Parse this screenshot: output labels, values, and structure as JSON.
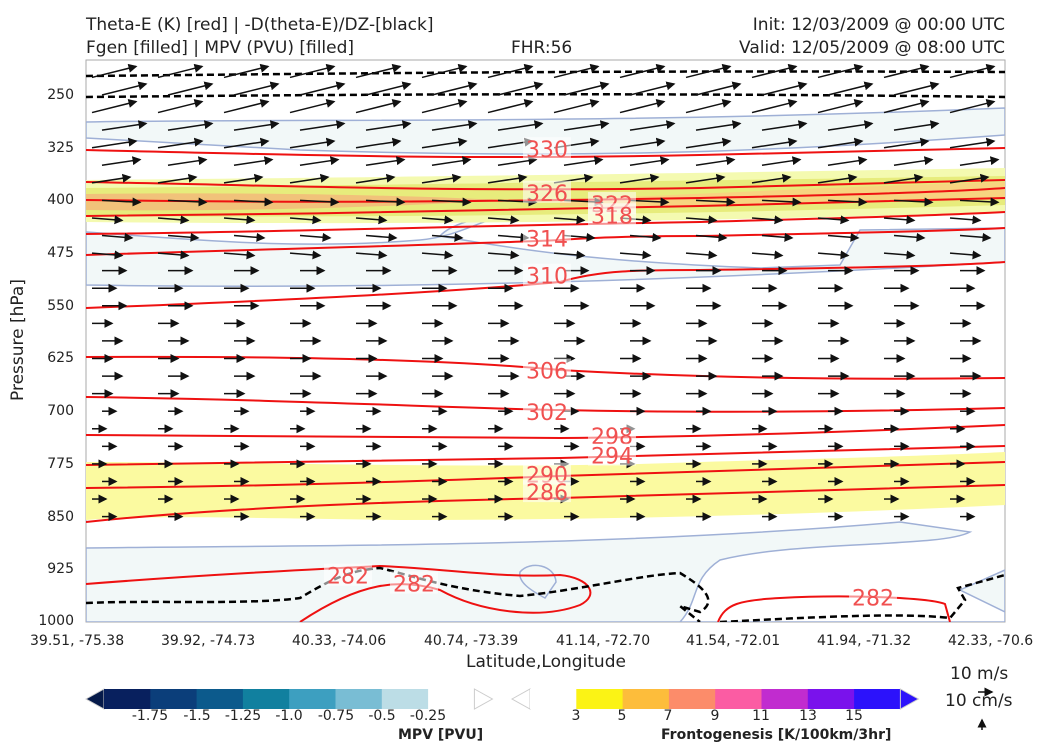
{
  "header": {
    "line1_left": "Theta-E (K) [red] | -D(theta-E)/DZ-[black]",
    "line2_left": "Fgen [filled] | MPV (PVU) [filled]",
    "fhr": "FHR:56",
    "init": "Init: 12/03/2009 @ 00:00 UTC",
    "valid": "Valid: 12/05/2009 @ 08:00 UTC"
  },
  "chart_data": {
    "type": "cross-section",
    "xlabel": "Latitude,Longitude",
    "ylabel": "Pressure [hPa]",
    "x_ticks": [
      "39.51, -75.38",
      "39.92, -74.73",
      "40.33, -74.06",
      "40.74, -73.39",
      "41.14, -72.70",
      "41.54, -72.01",
      "41.94, -71.32",
      "42.33, -70.6"
    ],
    "y_ticks": [
      "250",
      "325",
      "400",
      "475",
      "550",
      "625",
      "700",
      "775",
      "850",
      "925",
      "1000"
    ],
    "ylim": [
      1000,
      200
    ],
    "y_scale": "linear-inverted",
    "theta_e_contours": [
      {
        "label": "330",
        "level": 330,
        "label_pressure": 330
      },
      {
        "label": "326",
        "level": 326,
        "label_pressure": 392
      },
      {
        "label": "322",
        "level": 322,
        "label_pressure": 408
      },
      {
        "label": "318",
        "level": 318,
        "label_pressure": 424
      },
      {
        "label": "314",
        "level": 314,
        "label_pressure": 457
      },
      {
        "label": "310",
        "level": 310,
        "label_pressure": 510
      },
      {
        "label": "306",
        "level": 306,
        "label_pressure": 645
      },
      {
        "label": "302",
        "level": 302,
        "label_pressure": 704
      },
      {
        "label": "298",
        "level": 298,
        "label_pressure": 738
      },
      {
        "label": "294",
        "level": 294,
        "label_pressure": 766
      },
      {
        "label": "290",
        "level": 290,
        "label_pressure": 793
      },
      {
        "label": "286",
        "level": 286,
        "label_pressure": 818
      },
      {
        "label": "282",
        "level": 282,
        "label_pressure": 948
      },
      {
        "label": "282",
        "level": 282,
        "label_pressure": 937
      },
      {
        "label": "282",
        "level": 282,
        "label_pressure": 968
      }
    ],
    "fgen_regions": [
      {
        "level": 3,
        "pressure_range": [
          370,
          430
        ],
        "note": "upper frontal zone"
      },
      {
        "level": 5,
        "pressure_range": [
          385,
          415
        ]
      },
      {
        "level": 7,
        "pressure_range": [
          390,
          410
        ]
      },
      {
        "level": 3,
        "pressure_range": [
          760,
          845
        ],
        "note": "lower frontal zone"
      }
    ],
    "mpv_regions": [
      {
        "level": -0.25,
        "pressure_range": [
          270,
          340
        ]
      },
      {
        "level": -0.25,
        "pressure_range": [
          430,
          545
        ]
      },
      {
        "level": -0.25,
        "pressure_range": [
          880,
          1000
        ]
      }
    ],
    "colorbars": {
      "mpv": {
        "title": "MPV [PVU]",
        "ticks": [
          "-1.75",
          "-1.5",
          "-1.25",
          "-1.0",
          "-0.75",
          "-0.5",
          "-0.25"
        ],
        "colors": [
          "#08205e",
          "#0b3e7a",
          "#0c5a8c",
          "#11809f",
          "#3d9fc0",
          "#79bdd4",
          "#bcdde6",
          "#ffffff"
        ]
      },
      "fgen": {
        "title": "Frontogenesis [K/100km/3hr]",
        "ticks": [
          "3",
          "5",
          "7",
          "9",
          "11",
          "13",
          "15"
        ],
        "colors": [
          "#ffffff",
          "#fbf315",
          "#fdbd3b",
          "#fc8c6a",
          "#fb5ca3",
          "#c12ccf",
          "#7a12ec",
          "#2c12fb"
        ]
      }
    },
    "wind_reference": {
      "horizontal": "10 m/s",
      "vertical": "10 cm/s"
    },
    "colors": {
      "theta_e": "#ee1111",
      "ddz": "#000000",
      "mpv_outline": "#9fb0d6"
    }
  }
}
